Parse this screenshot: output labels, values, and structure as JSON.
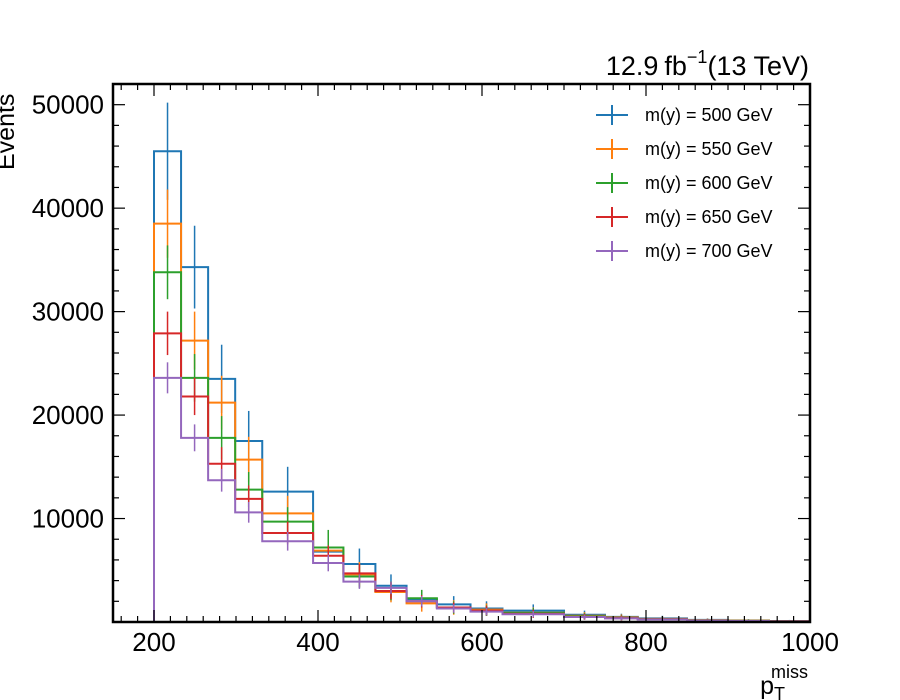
{
  "chart_data": {
    "type": "histogram",
    "lumi_label": {
      "value": "12.9",
      "unit": "fb",
      "exponent": "−1",
      "energy": "(13 TeV)"
    },
    "xlabel": {
      "main": "p",
      "sub": "T",
      "sup": "miss"
    },
    "ylabel": "Events",
    "xlim": [
      150,
      1000
    ],
    "ylim": [
      0,
      52000
    ],
    "xticks": [
      200,
      400,
      600,
      800,
      1000
    ],
    "yticks": [
      10000,
      20000,
      30000,
      40000,
      50000
    ],
    "grid": false,
    "legend_position": "top-right",
    "bin_edges": [
      200,
      233,
      266,
      299,
      332,
      394,
      431,
      470,
      508,
      545,
      586,
      625,
      700,
      750,
      790,
      850,
      900,
      950,
      1000
    ],
    "series": [
      {
        "name": "m(y) = 500 GeV",
        "color": "#1f77b4",
        "values": [
          45500,
          34300,
          23500,
          17500,
          12600,
          6800,
          5600,
          3500,
          2200,
          1700,
          1300,
          1100,
          700,
          500,
          350,
          200,
          150,
          100
        ],
        "errors": [
          4700,
          4000,
          3300,
          2900,
          2400,
          1600,
          1500,
          1100,
          900,
          800,
          700,
          600,
          400,
          300,
          250,
          150,
          120,
          100
        ]
      },
      {
        "name": "m(y) = 550 GeV",
        "color": "#ff7f0e",
        "values": [
          38500,
          27200,
          21200,
          15700,
          10500,
          6900,
          4600,
          2900,
          1800,
          1400,
          1200,
          900,
          600,
          450,
          300,
          180,
          130,
          90
        ],
        "errors": [
          3300,
          2800,
          2600,
          2200,
          1700,
          1400,
          1200,
          1000,
          800,
          700,
          600,
          500,
          350,
          280,
          220,
          140,
          110,
          90
        ]
      },
      {
        "name": "m(y) = 600 GeV",
        "color": "#2ca02c",
        "values": [
          33800,
          23600,
          17800,
          12800,
          9700,
          7200,
          4400,
          3000,
          2300,
          1400,
          1100,
          900,
          550,
          400,
          280,
          160,
          120,
          80
        ],
        "errors": [
          2600,
          2300,
          2100,
          1700,
          1400,
          1700,
          1100,
          900,
          800,
          600,
          500,
          450,
          300,
          250,
          200,
          130,
          100,
          80
        ]
      },
      {
        "name": "m(y) = 650 GeV",
        "color": "#d62728",
        "values": [
          27900,
          21800,
          15300,
          11900,
          8600,
          6400,
          4700,
          3000,
          2000,
          1400,
          1100,
          800,
          500,
          380,
          260,
          150,
          110,
          70
        ],
        "errors": [
          2100,
          1800,
          1600,
          1300,
          1100,
          1000,
          900,
          800,
          600,
          500,
          450,
          400,
          280,
          230,
          180,
          120,
          90,
          70
        ]
      },
      {
        "name": "m(y) = 700 GeV",
        "color": "#9467bd",
        "values": [
          23600,
          17800,
          13700,
          10600,
          7800,
          5700,
          3900,
          3300,
          2000,
          1300,
          1000,
          750,
          480,
          350,
          240,
          140,
          100,
          60
        ],
        "errors": [
          1500,
          1300,
          1100,
          1000,
          900,
          800,
          700,
          600,
          500,
          400,
          350,
          300,
          230,
          180,
          150,
          100,
          80,
          60
        ]
      }
    ]
  }
}
